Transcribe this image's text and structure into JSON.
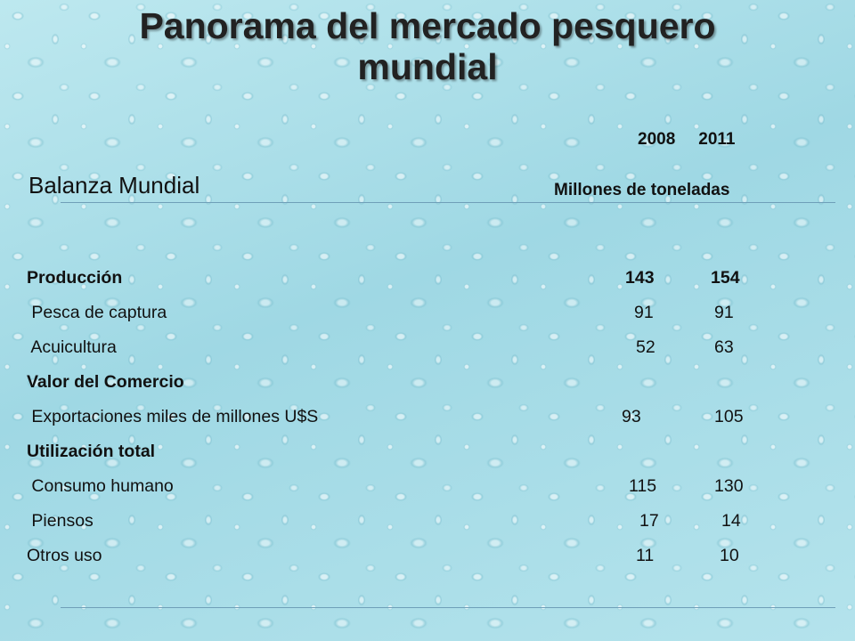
{
  "slide": {
    "title_line1": "Panorama del mercado pesquero",
    "title_line2": "mundial",
    "years": [
      "2008",
      "2011"
    ],
    "section_title": "Balanza Mundial",
    "units": "Millones de toneladas"
  },
  "rows": [
    {
      "label": "Producción",
      "v2008": "143",
      "v2011": "154",
      "bold": true
    },
    {
      "label": " Pesca de captura",
      "v2008": "91",
      "v2011": "91",
      "bold": false
    },
    {
      "label": " Acuicultura",
      "v2008": "52",
      "v2011": "63",
      "bold": false
    },
    {
      "label": "Valor del Comercio",
      "v2008": "",
      "v2011": "",
      "bold": true
    },
    {
      "label": " Exportaciones miles de millones U$S",
      "v2008": "93",
      "v2011": "105",
      "bold": false
    },
    {
      "label": "Utilización total",
      "v2008": "",
      "v2011": "",
      "bold": true
    },
    {
      "label": " Consumo humano",
      "v2008": "115",
      "v2011": "130",
      "bold": false
    },
    {
      "label": " Piensos",
      "v2008": "17",
      "v2011": "14",
      "bold": false
    },
    {
      "label": "Otros uso",
      "v2008": "11",
      "v2011": "10",
      "bold": false
    }
  ],
  "colors": {
    "background": "#a6dde8",
    "text": "#111111",
    "rule": "#6f9fb8"
  }
}
